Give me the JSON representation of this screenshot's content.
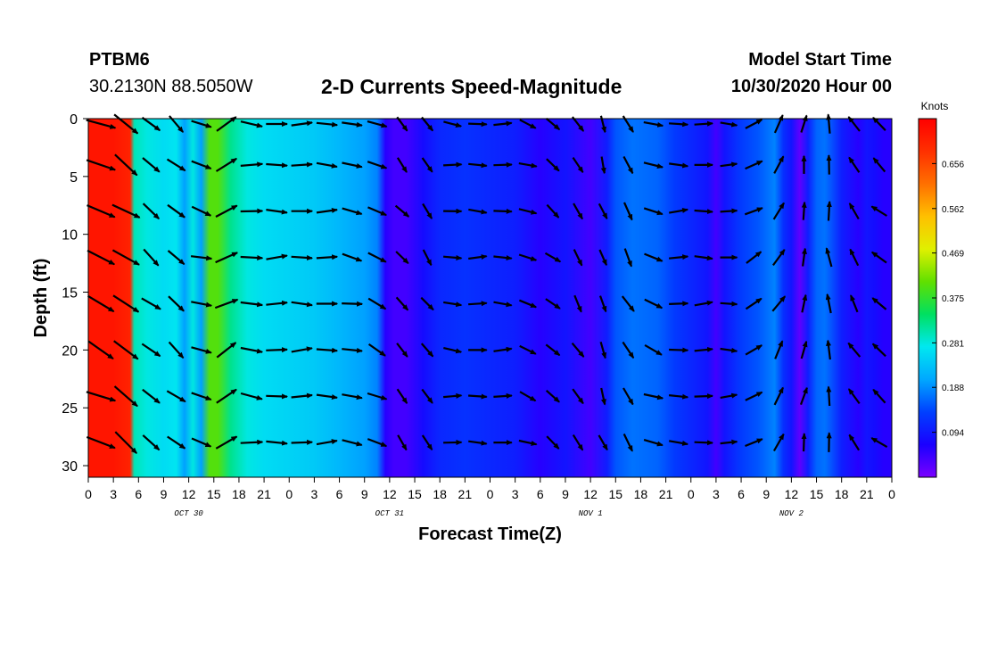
{
  "header": {
    "station": "PTBM6",
    "coords": "30.2130N 88.5050W",
    "title": "2-D Currents Speed-Magnitude",
    "model_start_label": "Model Start Time",
    "model_start_value": "10/30/2020 Hour 00"
  },
  "chart_data": {
    "type": "heatmap",
    "title": "2-D Currents Speed-Magnitude",
    "xlabel": "Forecast Time(Z)",
    "ylabel": "Depth (ft)",
    "x_range_hours": [
      0,
      96
    ],
    "ylim": [
      0,
      31
    ],
    "y_inverted": true,
    "x_tick_labels": [
      "0",
      "3",
      "6",
      "9",
      "12",
      "15",
      "18",
      "21",
      "0",
      "3",
      "6",
      "9",
      "12",
      "15",
      "18",
      "21",
      "0",
      "3",
      "6",
      "9",
      "12",
      "15",
      "18",
      "21",
      "0",
      "3",
      "6",
      "9",
      "12",
      "15",
      "18",
      "21",
      "0"
    ],
    "y_ticks": [
      0,
      5,
      10,
      15,
      20,
      25,
      30
    ],
    "date_labels": [
      {
        "hour": 12,
        "label": "OCT 30"
      },
      {
        "hour": 36,
        "label": "OCT 31"
      },
      {
        "hour": 60,
        "label": "NOV 1"
      },
      {
        "hour": 84,
        "label": "NOV 2"
      }
    ],
    "colorbar": {
      "title": "Knots",
      "ticks": [
        "0.656",
        "0.562",
        "0.469",
        "0.375",
        "0.281",
        "0.188",
        "0.094"
      ],
      "tick_values": [
        0.656,
        0.562,
        0.469,
        0.375,
        0.281,
        0.188,
        0.094
      ],
      "range": [
        0,
        0.75
      ],
      "colors": [
        "#7a00ff",
        "#1a00ff",
        "#0040ff",
        "#00a8ff",
        "#00e8f0",
        "#00e060",
        "#60e000",
        "#e0f000",
        "#ffc000",
        "#ff7000",
        "#ff3000",
        "#ff0000"
      ]
    },
    "speed_profile": {
      "hours": [
        0,
        1,
        3,
        5,
        5.5,
        7,
        9,
        10.5,
        11.5,
        12.5,
        13.5,
        14.5,
        15.5,
        17,
        19,
        21,
        24,
        27,
        30,
        33,
        34.5,
        35.5,
        36.5,
        38,
        40,
        42,
        45,
        48,
        51,
        54,
        57,
        60,
        62,
        63,
        65,
        68,
        70,
        72,
        74,
        75,
        76,
        78,
        80,
        82,
        83,
        84,
        85,
        86,
        87,
        88,
        90,
        92,
        93,
        94,
        95,
        96
      ],
      "speed_knots": [
        0.72,
        0.72,
        0.72,
        0.7,
        0.3,
        0.28,
        0.26,
        0.27,
        0.2,
        0.28,
        0.2,
        0.4,
        0.4,
        0.32,
        0.28,
        0.26,
        0.25,
        0.24,
        0.22,
        0.2,
        0.18,
        0.06,
        0.04,
        0.04,
        0.08,
        0.11,
        0.12,
        0.11,
        0.1,
        0.06,
        0.09,
        0.04,
        0.1,
        0.15,
        0.17,
        0.16,
        0.13,
        0.11,
        0.09,
        0.04,
        0.09,
        0.13,
        0.15,
        0.18,
        0.12,
        0.09,
        0.02,
        0.1,
        0.16,
        0.17,
        0.1,
        0.06,
        0.09,
        0.08,
        0.06,
        0.06
      ]
    },
    "vector_depths_ft": [
      0,
      4,
      8,
      12,
      16,
      20,
      24,
      28
    ],
    "vector_times_hours": [
      0,
      3,
      6,
      9,
      12,
      15,
      18,
      21,
      24,
      27,
      30,
      33,
      36,
      39,
      42,
      45,
      48,
      51,
      54,
      57,
      60,
      63,
      66,
      69,
      72,
      75,
      78,
      81,
      84,
      87,
      90,
      93
    ],
    "vector_directions_deg": [
      115,
      125,
      130,
      130,
      105,
      60,
      95,
      90,
      90,
      90,
      100,
      115,
      140,
      145,
      95,
      90,
      90,
      110,
      130,
      150,
      160,
      150,
      110,
      90,
      90,
      90,
      60,
      30,
      10,
      355,
      330,
      310
    ],
    "vector_note": "direction toward, degrees clockwise from north; arrow length proportional to speed"
  }
}
